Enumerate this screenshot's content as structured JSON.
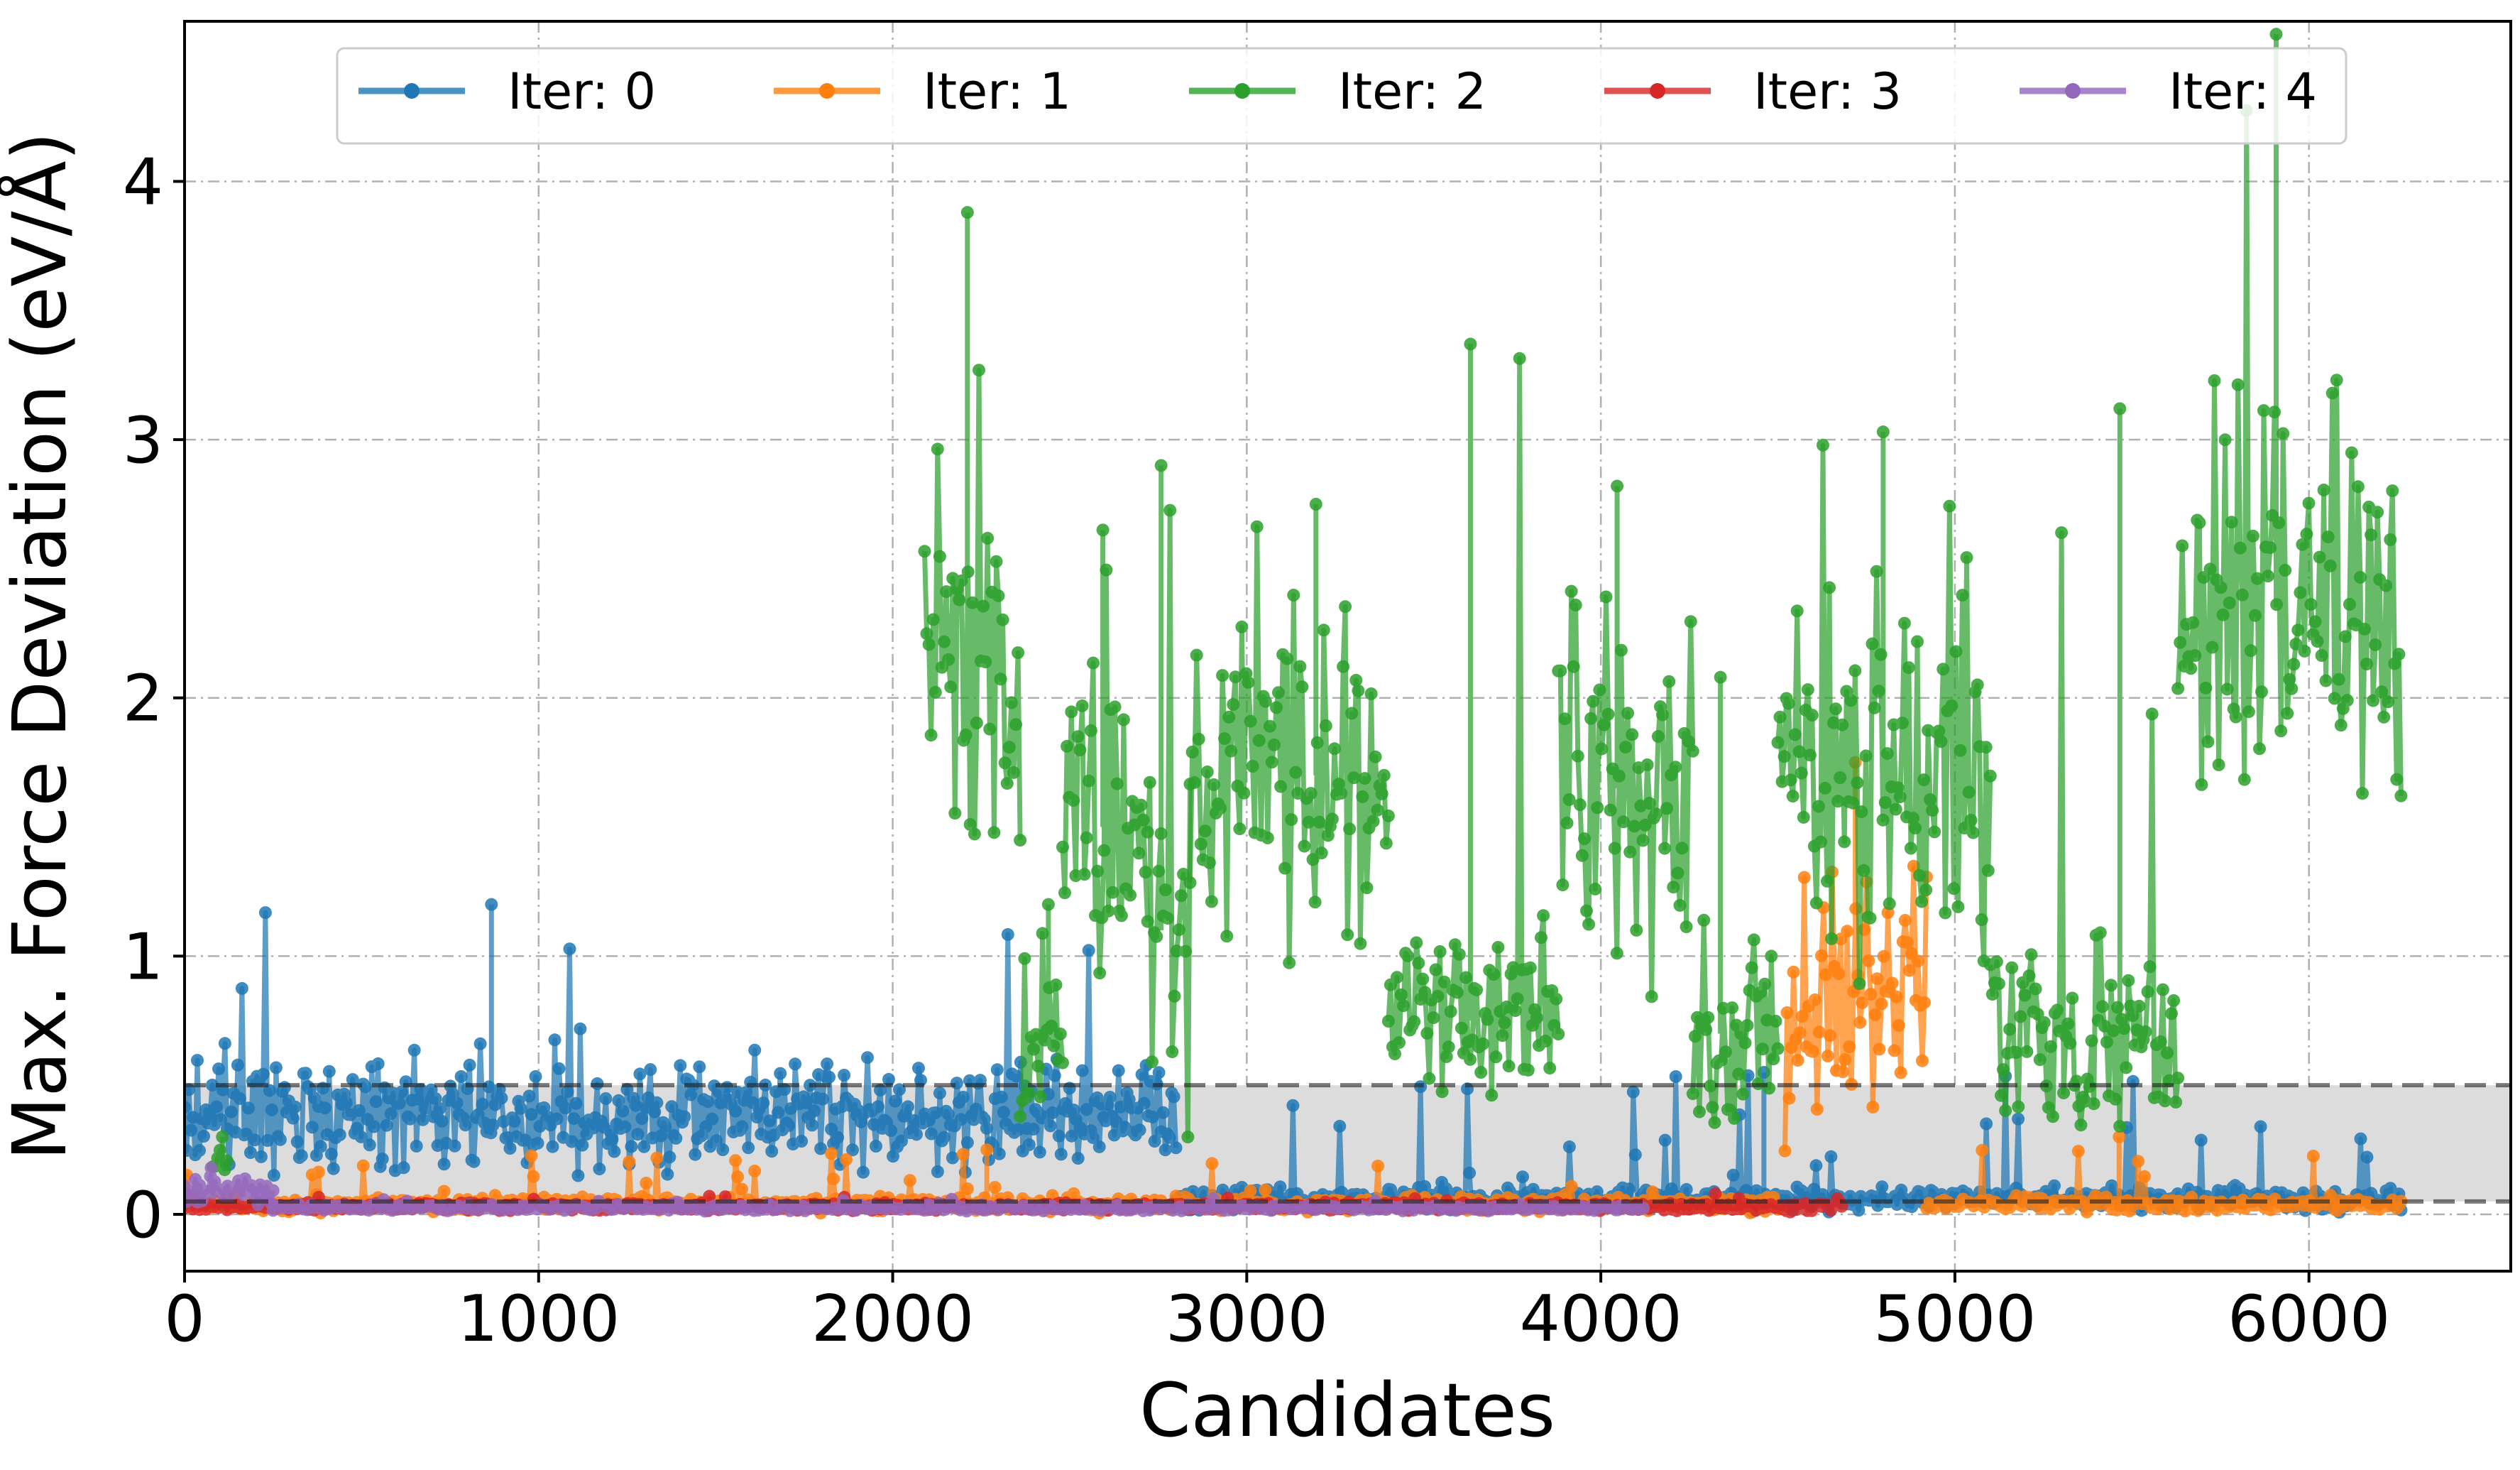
{
  "chart_data": {
    "type": "line",
    "title": "",
    "xlabel": "Candidates",
    "ylabel": "Max. Force Deviation (eV/Å)",
    "xlim": [
      0,
      6570
    ],
    "ylim": [
      -0.22,
      4.62
    ],
    "xticks": [
      0,
      1000,
      2000,
      3000,
      4000,
      5000,
      6000
    ],
    "yticks": [
      0,
      1,
      2,
      3,
      4
    ],
    "grid": true,
    "legend_position": "top",
    "thresholds": {
      "lower": 0.05,
      "upper": 0.5
    },
    "series": [
      {
        "name": "Iter: 0",
        "color": "#1f77b4",
        "segments": [
          {
            "x_start": 0,
            "x_end": 2800,
            "baseline": 0.38,
            "spread": 0.16,
            "spike_max": 1.2
          },
          {
            "x_start": 2800,
            "x_end": 6260,
            "baseline": 0.06,
            "spread": 0.03,
            "spike_max": 0.55
          }
        ]
      },
      {
        "name": "Iter: 1",
        "color": "#ff7f0e",
        "segments": [
          {
            "x_start": 0,
            "x_end": 4500,
            "baseline": 0.04,
            "spread": 0.02,
            "spike_max": 0.25
          },
          {
            "x_start": 4520,
            "x_end": 4920,
            "baseline": 0.85,
            "spread": 0.35,
            "spike_max": 1.75
          },
          {
            "x_start": 4920,
            "x_end": 6260,
            "baseline": 0.04,
            "spread": 0.02,
            "spike_max": 0.3
          }
        ]
      },
      {
        "name": "Iter: 2",
        "color": "#2ca02c",
        "segments": [
          {
            "x_start": 80,
            "x_end": 120,
            "baseline": 0.2,
            "spread": 0.05,
            "spike_max": 0.3
          },
          {
            "x_start": 2090,
            "x_end": 2360,
            "baseline": 2.2,
            "spread": 0.6,
            "spike_max": 3.88
          },
          {
            "x_start": 2360,
            "x_end": 2480,
            "baseline": 0.7,
            "spread": 0.3,
            "spike_max": 1.2
          },
          {
            "x_start": 2480,
            "x_end": 2720,
            "baseline": 1.5,
            "spread": 0.5,
            "spike_max": 2.65
          },
          {
            "x_start": 2720,
            "x_end": 2840,
            "baseline": 1.1,
            "spread": 0.5,
            "spike_max": 2.9
          },
          {
            "x_start": 2840,
            "x_end": 3400,
            "baseline": 1.7,
            "spread": 0.45,
            "spike_max": 2.75
          },
          {
            "x_start": 3400,
            "x_end": 3880,
            "baseline": 0.75,
            "spread": 0.25,
            "spike_max": 3.37
          },
          {
            "x_start": 3880,
            "x_end": 4260,
            "baseline": 1.65,
            "spread": 0.5,
            "spike_max": 2.82
          },
          {
            "x_start": 4260,
            "x_end": 4500,
            "baseline": 0.7,
            "spread": 0.3,
            "spike_max": 2.08
          },
          {
            "x_start": 4500,
            "x_end": 5100,
            "baseline": 1.75,
            "spread": 0.55,
            "spike_max": 3.03
          },
          {
            "x_start": 5100,
            "x_end": 5630,
            "baseline": 0.65,
            "spread": 0.3,
            "spike_max": 3.12
          },
          {
            "x_start": 5630,
            "x_end": 6260,
            "baseline": 2.35,
            "spread": 0.5,
            "spike_max": 4.57
          }
        ]
      },
      {
        "name": "Iter: 3",
        "color": "#d62728",
        "segments": [
          {
            "x_start": 0,
            "x_end": 4100,
            "baseline": 0.03,
            "spread": 0.01,
            "spike_max": 0.07
          },
          {
            "x_start": 4100,
            "x_end": 4680,
            "baseline": 0.03,
            "spread": 0.012,
            "spike_max": 0.08
          }
        ]
      },
      {
        "name": "Iter: 4",
        "color": "#9467bd",
        "segments": [
          {
            "x_start": 0,
            "x_end": 250,
            "baseline": 0.09,
            "spread": 0.04,
            "spike_max": 0.18
          },
          {
            "x_start": 250,
            "x_end": 4120,
            "baseline": 0.025,
            "spread": 0.008,
            "spike_max": 0.06
          }
        ]
      }
    ]
  }
}
